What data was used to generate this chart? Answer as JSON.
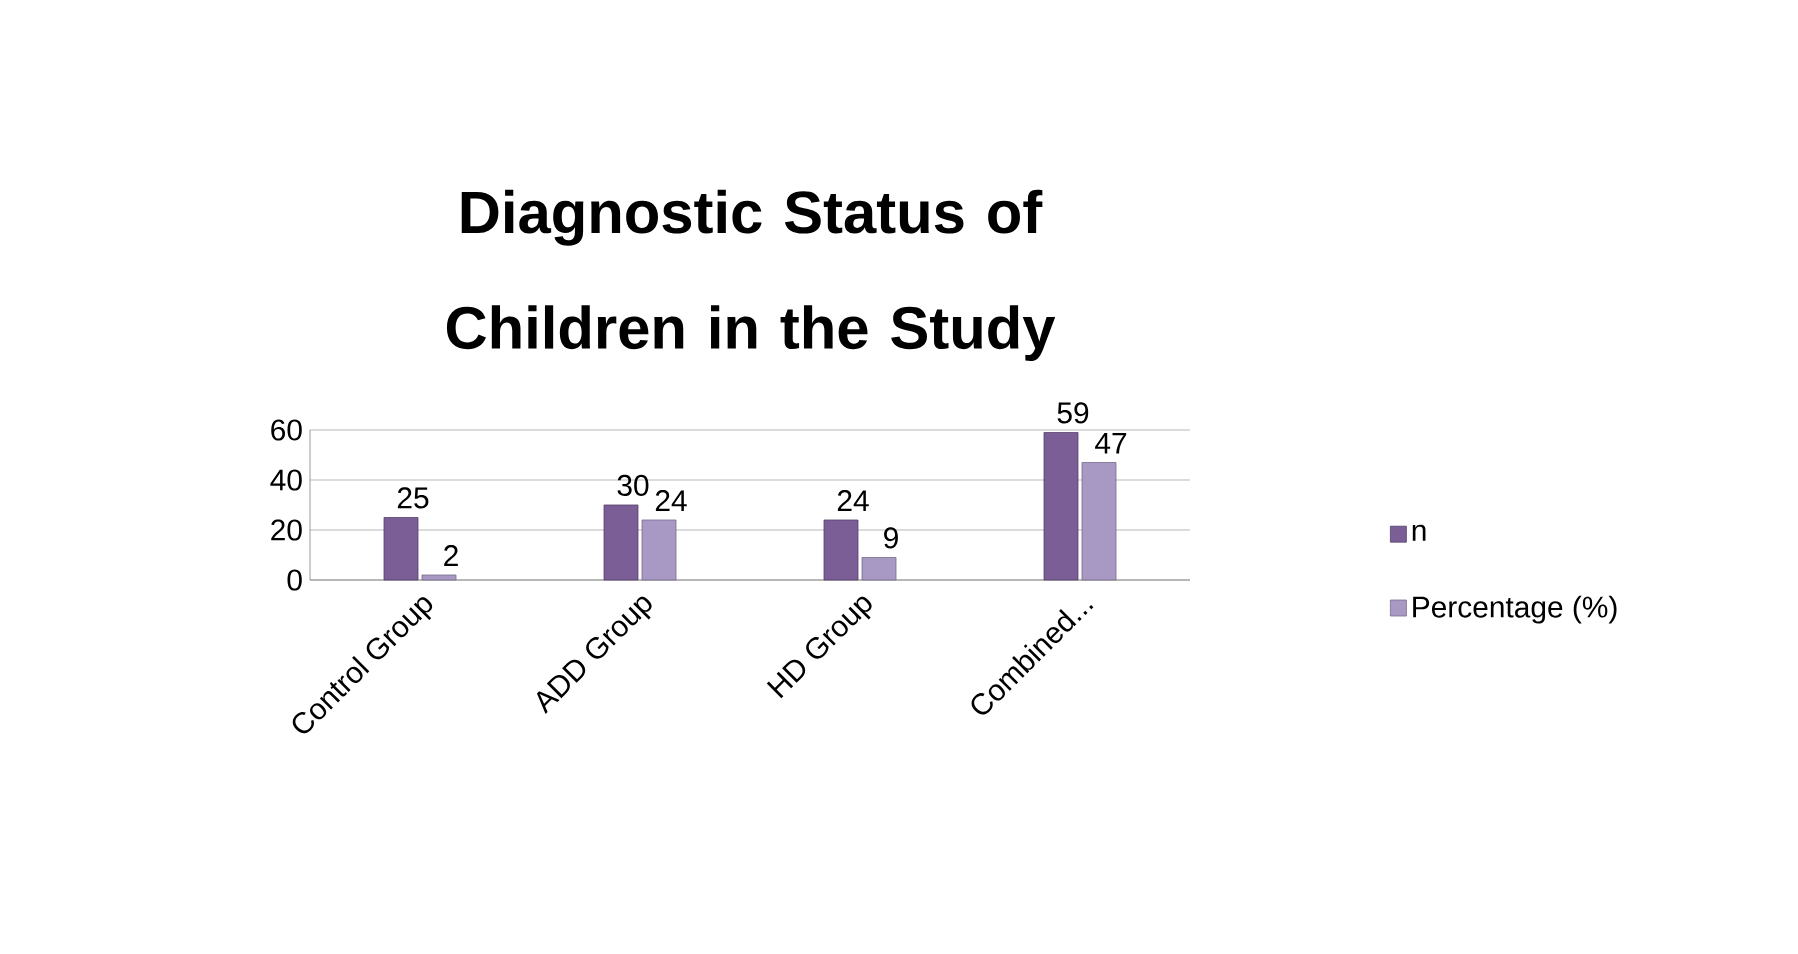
{
  "chart_data": {
    "type": "bar",
    "title": "Diagnostic Status of Children in the Study",
    "categories": [
      "Control Group",
      "ADD Group",
      "HD Group",
      "Combined..."
    ],
    "series": [
      {
        "name": "n",
        "color": "#7b5e96",
        "values": [
          25,
          30,
          24,
          59
        ]
      },
      {
        "name": "Percentage (%)",
        "color": "#a899c4",
        "values": [
          2,
          24,
          9,
          47
        ]
      }
    ],
    "ylim": [
      0,
      60
    ],
    "yticks": [
      0,
      20,
      40,
      60
    ],
    "grid": "y",
    "legend": "right",
    "data_labels": true
  }
}
